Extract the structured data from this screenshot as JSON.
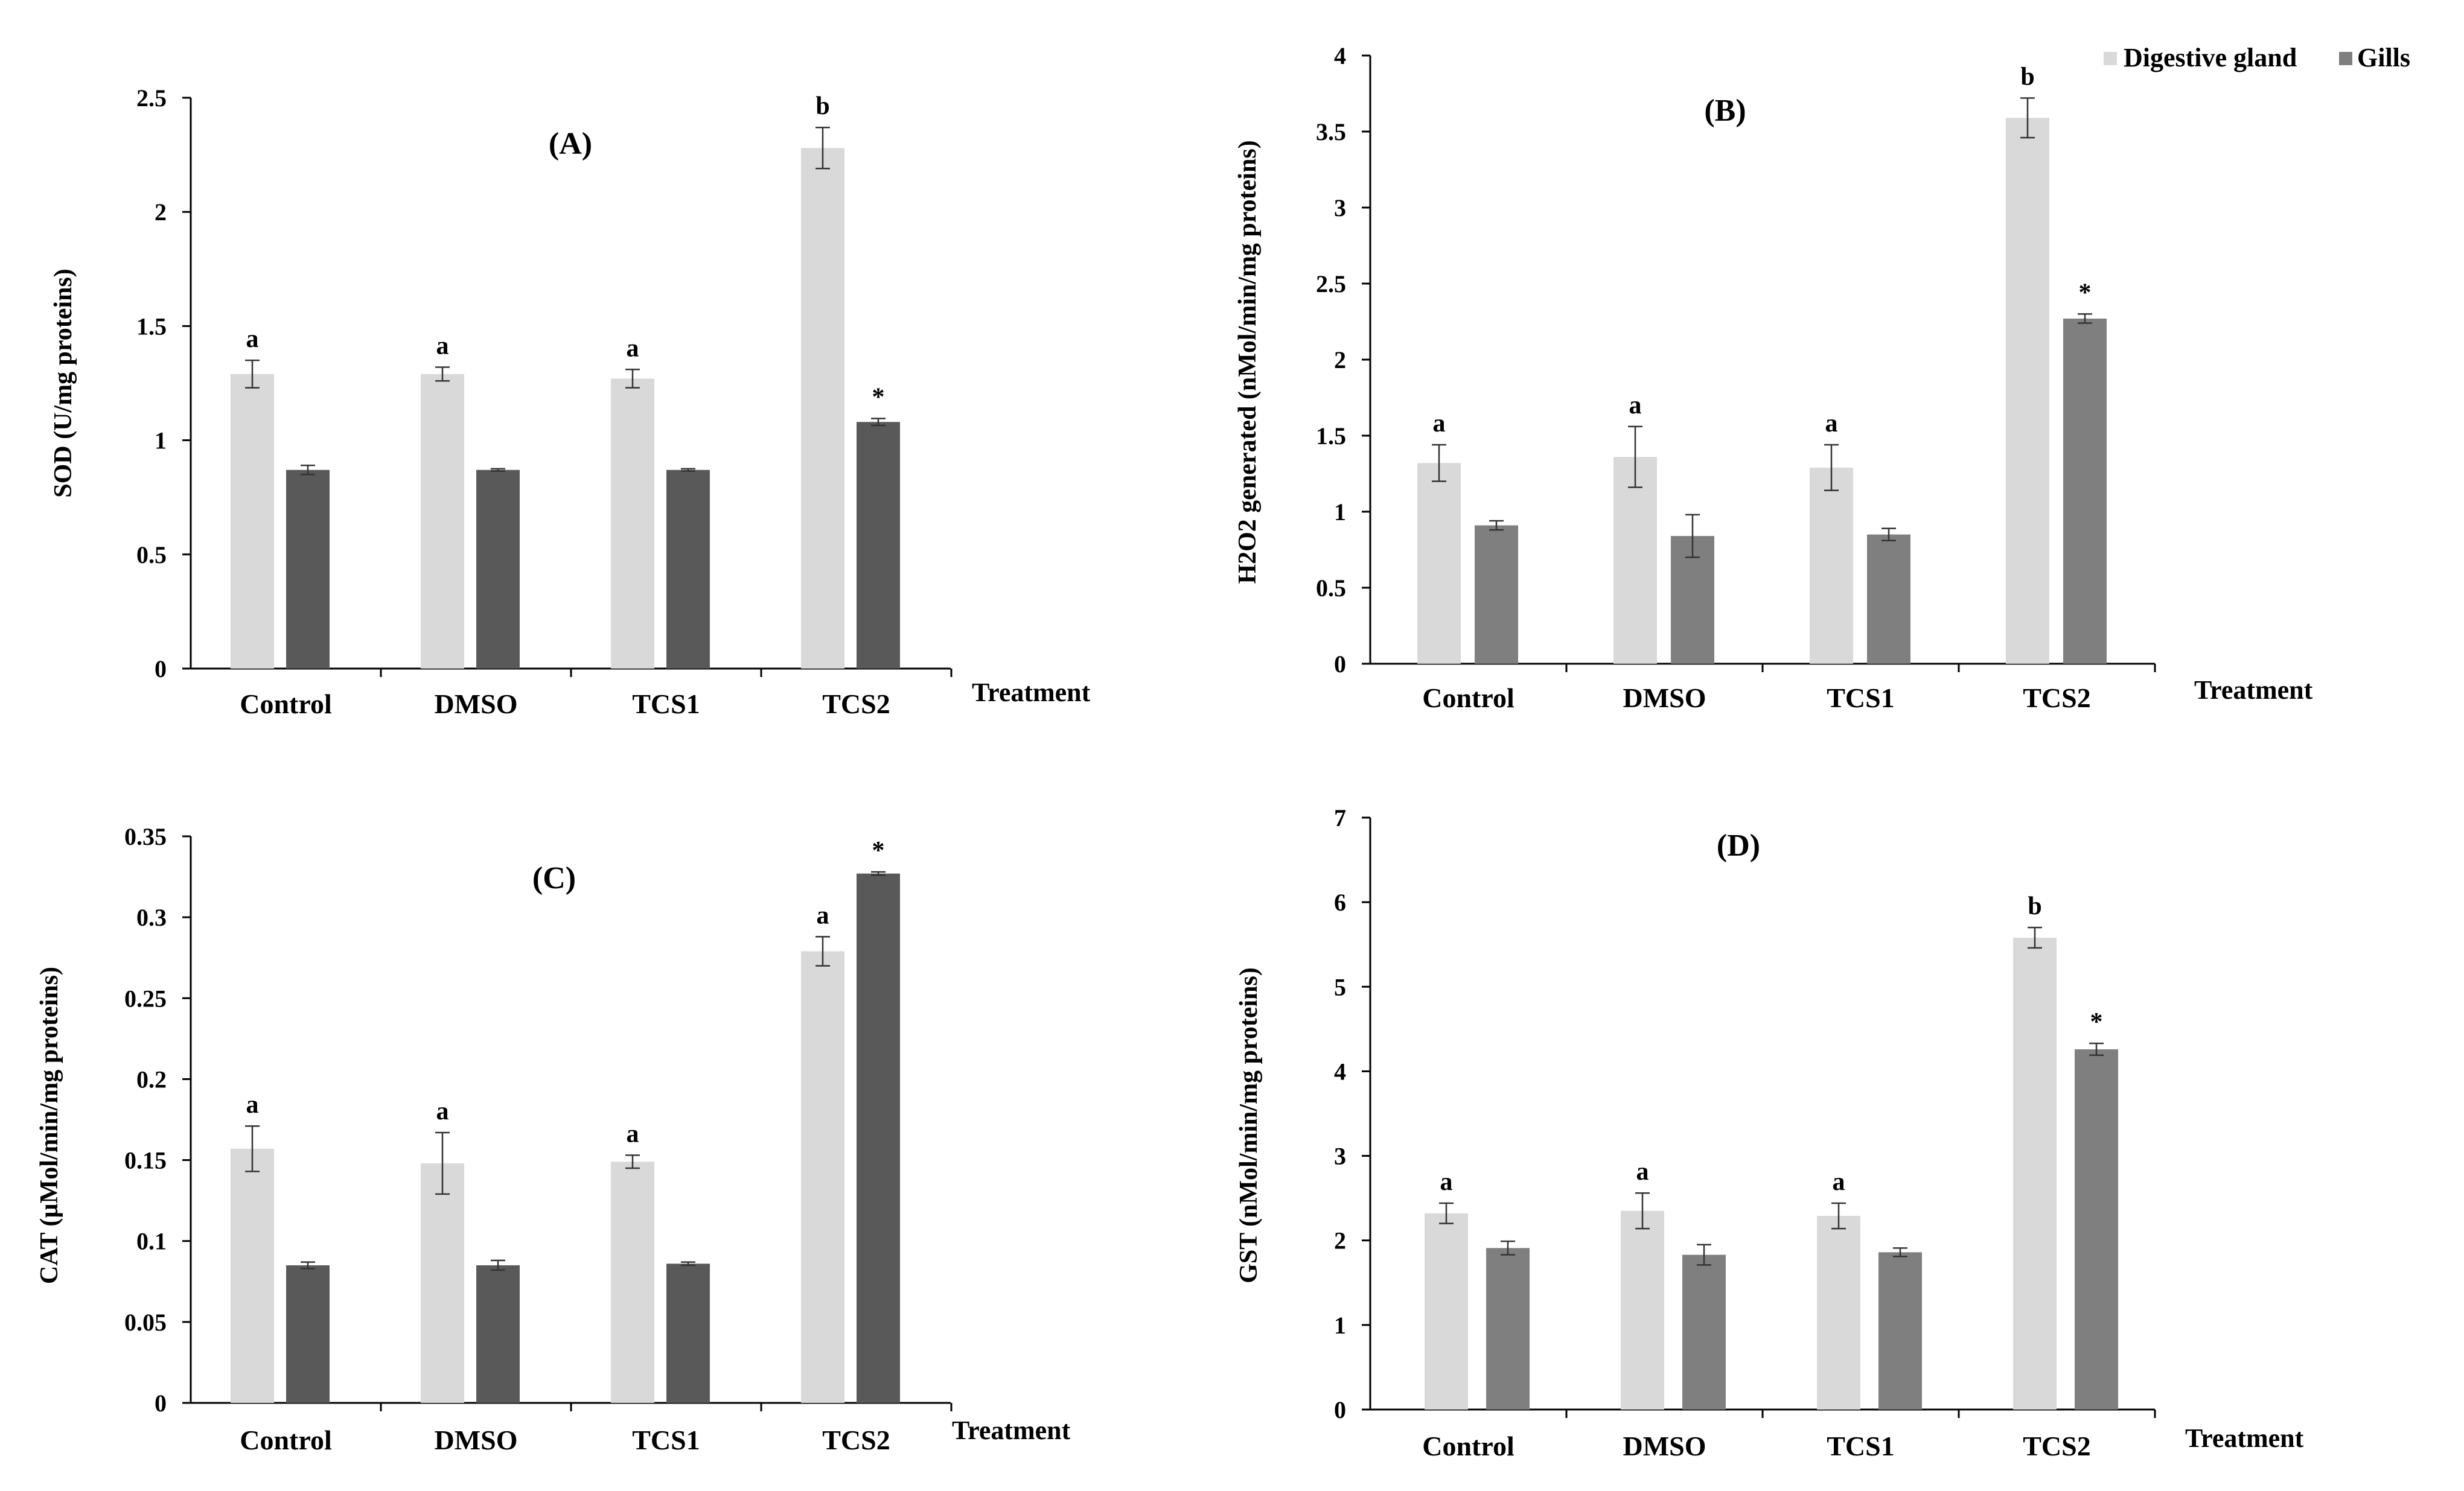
{
  "legend": {
    "items": [
      {
        "label": "Digestive gland",
        "color": "#d9d9d9"
      },
      {
        "label": "Gills",
        "color": "#7f7f7f"
      }
    ]
  },
  "chart_data": [
    {
      "id": "A",
      "type": "bar",
      "title": "(A)",
      "xlabel": "Treatment",
      "ylabel": "SOD (U/mg  proteins)",
      "categories": [
        "Control",
        "DMSO",
        "TCS1",
        "TCS2"
      ],
      "ylim": [
        0,
        2.5
      ],
      "yticks": [
        0,
        0.5,
        1,
        1.5,
        2,
        2.5
      ],
      "ytick_labels": [
        "0",
        "0.5",
        "1",
        "1.5",
        "2",
        "2.5"
      ],
      "series": [
        {
          "name": "Digestive gland",
          "color": "#d9d9d9",
          "values": [
            1.29,
            1.29,
            1.27,
            2.28
          ],
          "errors": [
            0.06,
            0.03,
            0.04,
            0.09
          ],
          "labels": [
            "a",
            "a",
            "a",
            "b"
          ]
        },
        {
          "name": "Gills",
          "color": "#595959",
          "values": [
            0.87,
            0.87,
            0.87,
            1.08
          ],
          "errors": [
            0.02,
            0.005,
            0.005,
            0.015
          ],
          "labels": [
            "",
            "",
            "",
            "*"
          ]
        }
      ]
    },
    {
      "id": "B",
      "type": "bar",
      "title": "(B)",
      "xlabel": "Treatment",
      "ylabel": "H2O2 generated  (nMol/min/mg  proteins)",
      "categories": [
        "Control",
        "DMSO",
        "TCS1",
        "TCS2"
      ],
      "ylim": [
        0,
        4
      ],
      "yticks": [
        0,
        0.5,
        1,
        1.5,
        2,
        2.5,
        3,
        3.5,
        4
      ],
      "ytick_labels": [
        "0",
        "0.5",
        "1",
        "1.5",
        "2",
        "2.5",
        "3",
        "3.5",
        "4"
      ],
      "series": [
        {
          "name": "Digestive gland",
          "color": "#d9d9d9",
          "values": [
            1.32,
            1.36,
            1.29,
            3.59
          ],
          "errors": [
            0.12,
            0.2,
            0.15,
            0.13
          ],
          "labels": [
            "a",
            "a",
            "a",
            "b"
          ]
        },
        {
          "name": "Gills",
          "color": "#7f7f7f",
          "values": [
            0.91,
            0.84,
            0.85,
            2.27
          ],
          "errors": [
            0.03,
            0.14,
            0.04,
            0.03
          ],
          "labels": [
            "",
            "",
            "",
            "*"
          ]
        }
      ]
    },
    {
      "id": "C",
      "type": "bar",
      "title": "(C)",
      "xlabel": "Treatment",
      "ylabel": "CAT (µMol/min/mg  proteins)",
      "categories": [
        "Control",
        "DMSO",
        "TCS1",
        "TCS2"
      ],
      "ylim": [
        0,
        0.35
      ],
      "yticks": [
        0,
        0.05,
        0.1,
        0.15,
        0.2,
        0.25,
        0.3,
        0.35
      ],
      "ytick_labels": [
        "0",
        "0.05",
        "0.1",
        "0.15",
        "0.2",
        "0.25",
        "0.3",
        "0.35"
      ],
      "series": [
        {
          "name": "Digestive gland",
          "color": "#d9d9d9",
          "values": [
            0.157,
            0.148,
            0.149,
            0.279
          ],
          "errors": [
            0.014,
            0.019,
            0.004,
            0.009
          ],
          "labels": [
            "a",
            "a",
            "a",
            "a"
          ]
        },
        {
          "name": "Gills",
          "color": "#595959",
          "values": [
            0.085,
            0.085,
            0.086,
            0.327
          ],
          "errors": [
            0.002,
            0.003,
            0.001,
            0.001
          ],
          "labels": [
            "",
            "",
            "",
            "*"
          ]
        }
      ]
    },
    {
      "id": "D",
      "type": "bar",
      "title": "(D)",
      "xlabel": "Treatment",
      "ylabel": "GST (nMol/min/mg  proteins)",
      "categories": [
        "Control",
        "DMSO",
        "TCS1",
        "TCS2"
      ],
      "ylim": [
        0,
        7
      ],
      "yticks": [
        0,
        1,
        2,
        3,
        4,
        5,
        6,
        7
      ],
      "ytick_labels": [
        "0",
        "1",
        "2",
        "3",
        "4",
        "5",
        "6",
        "7"
      ],
      "series": [
        {
          "name": "Digestive gland",
          "color": "#d9d9d9",
          "values": [
            2.32,
            2.35,
            2.29,
            5.58
          ],
          "errors": [
            0.12,
            0.21,
            0.15,
            0.12
          ],
          "labels": [
            "a",
            "a",
            "a",
            "b"
          ]
        },
        {
          "name": "Gills",
          "color": "#7f7f7f",
          "values": [
            1.91,
            1.83,
            1.86,
            4.26
          ],
          "errors": [
            0.08,
            0.12,
            0.05,
            0.07
          ],
          "labels": [
            "",
            "",
            "",
            "*"
          ]
        }
      ]
    }
  ]
}
